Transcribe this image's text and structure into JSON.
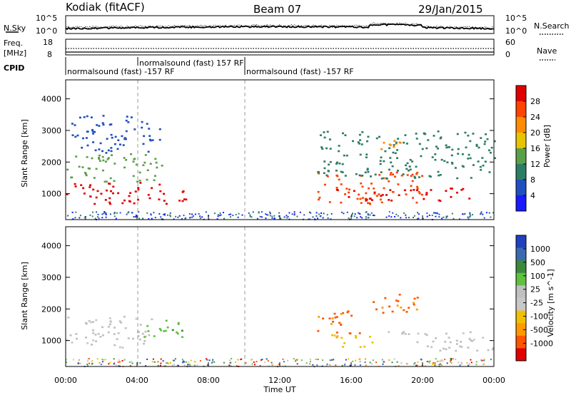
{
  "header": {
    "station": "Kodiak (fitACF)",
    "beam": "Beam 07",
    "date": "29/Jan/2015"
  },
  "top_panels": {
    "nsky_label": "N.Sky",
    "nsearch_label": "N.Search",
    "nave_label": "Nave",
    "freq_label_line1": "Freq.",
    "freq_label_line2": "[MHz]",
    "cpid_label": "CPID",
    "noise_left_ticks": [
      "10^5",
      "10^0"
    ],
    "noise_right_ticks": [
      "10^5",
      "10^0"
    ],
    "freq_ticks": [
      "18",
      "8"
    ],
    "nave_ticks": [
      "60",
      "0"
    ],
    "cpid_segments": [
      {
        "label": "normalsound (fast) -157 RF",
        "start_h": 0.0,
        "end_h": 4.0,
        "row": 1
      },
      {
        "label": "normalsound (fast) 157 RF",
        "start_h": 4.0,
        "end_h": 10.0,
        "row": 0
      },
      {
        "label": "normalsound (fast) -157 RF",
        "start_h": 10.0,
        "end_h": 24.0,
        "row": 1
      }
    ]
  },
  "x_axis": {
    "label": "Time UT",
    "ticks": [
      "00:00",
      "04:00",
      "08:00",
      "12:00",
      "16:00",
      "20:00",
      "00:00"
    ]
  },
  "colors": {
    "power": [
      "#1a1aff",
      "#2050c0",
      "#2d7d64",
      "#5aa04a",
      "#e8c400",
      "#ff8c00",
      "#ff4400",
      "#e00000"
    ],
    "velocity": [
      "#e00000",
      "#ff5500",
      "#ff9900",
      "#f0c000",
      "#c8c8c8",
      "#c0c0c0",
      "#60c040",
      "#3a8a3a",
      "#3b6ab0",
      "#2040c0"
    ]
  },
  "chart_data": [
    {
      "type": "heatmap",
      "panel": "power",
      "xlabel": "Time UT",
      "ylabel": "Slant Range [km]",
      "ylim": [
        180,
        4600
      ],
      "yticks": [
        "1000",
        "2000",
        "3000",
        "4000"
      ],
      "ytick_values": [
        1000,
        2000,
        3000,
        4000
      ],
      "colorbar_label": "Power [dB]",
      "colorbar_ticks": [
        "28",
        "24",
        "20",
        "16",
        "12",
        "8",
        "4"
      ],
      "colorbar_range": [
        0,
        32
      ],
      "regions": [
        {
          "t": [
            0.0,
            6.8
          ],
          "r": [
            700,
            1400
          ],
          "level": 28
        },
        {
          "t": [
            0.0,
            5.5
          ],
          "r": [
            1400,
            2300
          ],
          "level": 12
        },
        {
          "t": [
            0.3,
            5.3
          ],
          "r": [
            2300,
            3500
          ],
          "level": 6
        },
        {
          "t": [
            14.0,
            20.0
          ],
          "r": [
            700,
            1700
          ],
          "level": 26
        },
        {
          "t": [
            15.0,
            23.0
          ],
          "r": [
            800,
            1200
          ],
          "level": 28
        },
        {
          "t": [
            17.0,
            19.0
          ],
          "r": [
            2300,
            2700
          ],
          "level": 20
        },
        {
          "t": [
            14.0,
            24.0
          ],
          "r": [
            1500,
            3000
          ],
          "level": 8
        }
      ]
    },
    {
      "type": "heatmap",
      "panel": "velocity",
      "xlabel": "Time UT",
      "ylabel": "Slant Range [km]",
      "ylim": [
        180,
        4600
      ],
      "yticks": [
        "1000",
        "2000",
        "3000",
        "4000"
      ],
      "ytick_values": [
        1000,
        2000,
        3000,
        4000
      ],
      "colorbar_label": "Velocity [m s^-1]",
      "colorbar_ticks": [
        "1000",
        "500",
        "100",
        "25",
        "-25",
        "-100",
        "-500",
        "-1000"
      ],
      "regions": [
        {
          "t": [
            0.0,
            5.0
          ],
          "r": [
            800,
            1800
          ],
          "level": "grey"
        },
        {
          "t": [
            4.3,
            6.5
          ],
          "r": [
            1100,
            1800
          ],
          "level": "green"
        },
        {
          "t": [
            14.0,
            16.5
          ],
          "r": [
            1200,
            2000
          ],
          "level": "orange"
        },
        {
          "t": [
            14.5,
            17.5
          ],
          "r": [
            800,
            1200
          ],
          "level": "yellow"
        },
        {
          "t": [
            17.0,
            20.0
          ],
          "r": [
            1900,
            2500
          ],
          "level": "orange"
        },
        {
          "t": [
            18.0,
            24.0
          ],
          "r": [
            700,
            1300
          ],
          "level": "grey"
        }
      ]
    }
  ]
}
